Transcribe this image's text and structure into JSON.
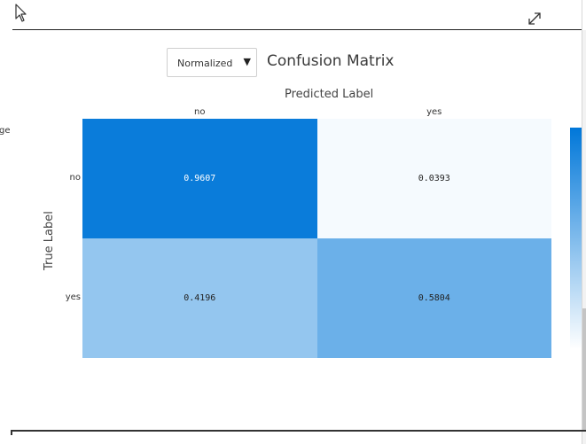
{
  "toolbar": {
    "cursor_icon": "arrow-cursor-icon",
    "expand_icon": "expand-diagonal-icon"
  },
  "controls": {
    "normalization_select": {
      "selected": "Normalized",
      "arrow": "▼"
    }
  },
  "chart_data": {
    "type": "heatmap",
    "title": "Confusion Matrix",
    "xlabel": "Predicted Label",
    "ylabel": "True Label",
    "x_categories": [
      "no",
      "yes"
    ],
    "y_categories": [
      "no",
      "yes"
    ],
    "values": [
      [
        0.9607,
        0.0393
      ],
      [
        0.4196,
        0.5804
      ]
    ],
    "value_labels": [
      [
        "0.9607",
        "0.0393"
      ],
      [
        "0.4196",
        "0.5804"
      ]
    ],
    "colorscale": [
      "#ffffff",
      "#0077d9"
    ],
    "colorbar": true
  },
  "side_stub_text": "ge"
}
